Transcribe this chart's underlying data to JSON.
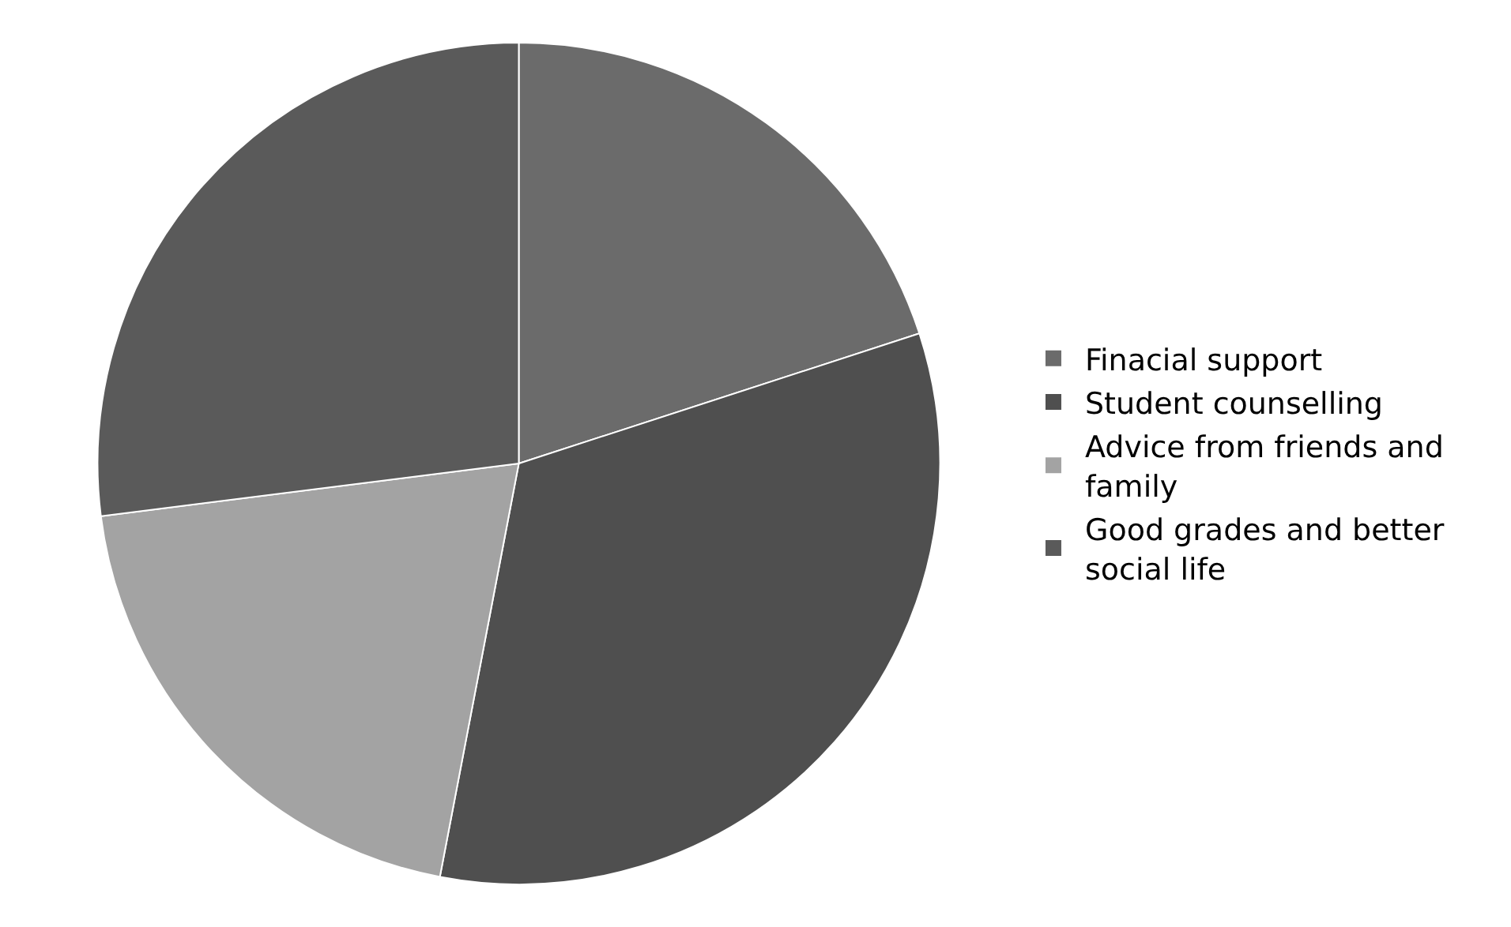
{
  "chart_data": {
    "type": "pie",
    "categories": [
      "Finacial support",
      "Student counselling",
      "Advice from friends and family",
      "Good grades and better social life"
    ],
    "values": [
      20,
      33,
      20,
      27
    ],
    "colors": [
      "#6b6b6b",
      "#4f4f4f",
      "#a3a3a3",
      "#5a5a5a"
    ],
    "legend": "right"
  }
}
